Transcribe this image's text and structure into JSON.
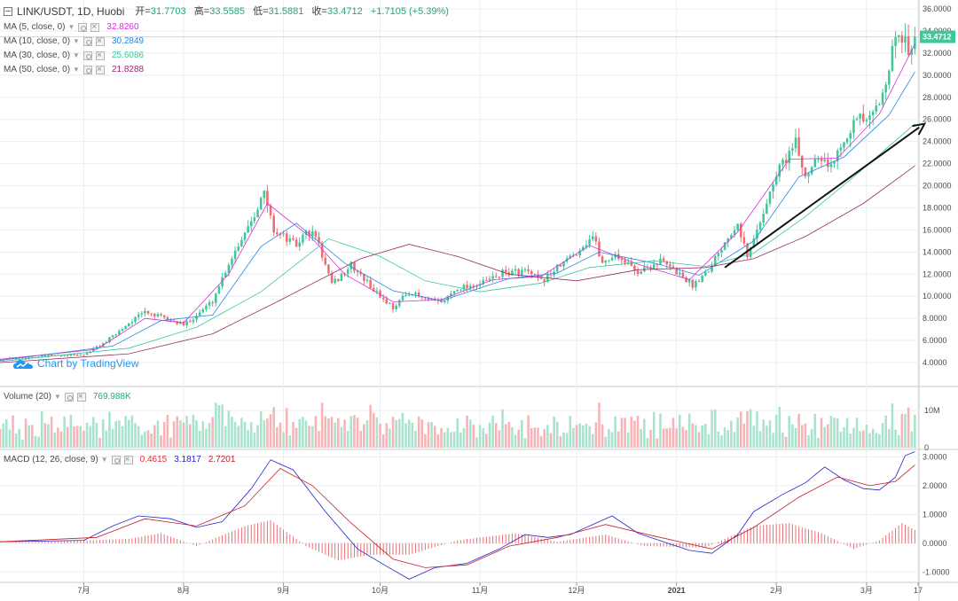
{
  "header": {
    "symbol": "LINK/USDT, 1D, Huobi",
    "open_label": "开=",
    "open": "31.7703",
    "high_label": "高=",
    "high": "33.5585",
    "low_label": "低=",
    "low": "31.5881",
    "close_label": "收=",
    "close": "33.4712",
    "change": "+1.7105 (+5.39%)"
  },
  "indicators": {
    "ma5": {
      "label": "MA (5, close, 0)",
      "value": "32.8260",
      "color": "#d62fd6"
    },
    "ma10": {
      "label": "MA (10, close, 0)",
      "value": "30.2849",
      "color": "#2c87e0"
    },
    "ma30": {
      "label": "MA (30, close, 0)",
      "value": "25.6086",
      "color": "#3fc79a"
    },
    "ma50": {
      "label": "MA (50, close, 0)",
      "value": "21.8288",
      "color": "#9c2a6a"
    },
    "volume": {
      "label": "Volume (20)",
      "value": "769.988K",
      "color": "#20a87a"
    },
    "macd": {
      "label": "MACD (12, 26, close, 9)",
      "hist": "0.4615",
      "macd": "3.1817",
      "signal": "2.7201",
      "hist_color": "#e0313a",
      "macd_color": "#2727c9",
      "signal_color": "#c4202a"
    }
  },
  "watermark": "Chart by TradingView",
  "colors": {
    "up": "#3fc79a",
    "down": "#ee6b72",
    "vol_up": "#a8e3cd",
    "vol_down": "#f6b4b6",
    "grid": "#e9eef2",
    "last_price_bg": "#3fc79a"
  },
  "chart_data": [
    {
      "type": "candlestick",
      "title": "LINK/USDT, 1D, Huobi",
      "x_range": [
        "2020-06-05",
        "2021-03-17"
      ],
      "x_tick_labels": [
        "7月",
        "8月",
        "9月",
        "10月",
        "11月",
        "12月",
        "2021",
        "2月",
        "3月",
        "17"
      ],
      "x_tick_dates": [
        "2020-07-01",
        "2020-08-01",
        "2020-09-01",
        "2020-10-01",
        "2020-11-01",
        "2020-12-01",
        "2021-01-01",
        "2021-02-01",
        "2021-03-01",
        "2021-03-17"
      ],
      "y_range": [
        2.0,
        36.0
      ],
      "y_ticks": [
        "4.0000",
        "6.0000",
        "8.0000",
        "10.0000",
        "12.0000",
        "14.0000",
        "16.0000",
        "18.0000",
        "20.0000",
        "22.0000",
        "24.0000",
        "26.0000",
        "28.0000",
        "30.0000",
        "32.0000",
        "34.0000",
        "36.0000"
      ],
      "last_price": "33.4712",
      "close_path": [
        [
          "2020-06-05",
          4.3
        ],
        [
          "2020-06-20",
          4.6
        ],
        [
          "2020-07-01",
          4.7
        ],
        [
          "2020-07-08",
          5.9
        ],
        [
          "2020-07-15",
          7.6
        ],
        [
          "2020-07-20",
          8.6
        ],
        [
          "2020-07-27",
          7.9
        ],
        [
          "2020-08-01",
          7.4
        ],
        [
          "2020-08-05",
          8.3
        ],
        [
          "2020-08-10",
          9.6
        ],
        [
          "2020-08-15",
          13.0
        ],
        [
          "2020-08-22",
          17.0
        ],
        [
          "2020-08-26",
          19.3
        ],
        [
          "2020-08-29",
          16.0
        ],
        [
          "2020-09-05",
          14.6
        ],
        [
          "2020-09-08",
          15.8
        ],
        [
          "2020-09-11",
          15.5
        ],
        [
          "2020-09-16",
          11.0
        ],
        [
          "2020-09-22",
          12.8
        ],
        [
          "2020-10-01",
          10.0
        ],
        [
          "2020-10-05",
          9.0
        ],
        [
          "2020-10-10",
          10.4
        ],
        [
          "2020-10-15",
          9.7
        ],
        [
          "2020-10-20",
          9.4
        ],
        [
          "2020-10-25",
          10.8
        ],
        [
          "2020-11-01",
          11.1
        ],
        [
          "2020-11-08",
          12.1
        ],
        [
          "2020-11-15",
          12.3
        ],
        [
          "2020-11-20",
          11.3
        ],
        [
          "2020-11-26",
          12.8
        ],
        [
          "2020-12-01",
          14.0
        ],
        [
          "2020-12-06",
          15.5
        ],
        [
          "2020-12-09",
          13.0
        ],
        [
          "2020-12-13",
          13.8
        ],
        [
          "2020-12-20",
          12.2
        ],
        [
          "2020-12-27",
          13.2
        ],
        [
          "2021-01-02",
          12.0
        ],
        [
          "2021-01-06",
          11.0
        ],
        [
          "2021-01-11",
          12.5
        ],
        [
          "2021-01-16",
          15.0
        ],
        [
          "2021-01-20",
          16.8
        ],
        [
          "2021-01-23",
          13.5
        ],
        [
          "2021-01-28",
          17.7
        ],
        [
          "2021-02-02",
          21.7
        ],
        [
          "2021-02-07",
          23.8
        ],
        [
          "2021-02-10",
          20.8
        ],
        [
          "2021-02-14",
          23.0
        ],
        [
          "2021-02-18",
          21.6
        ],
        [
          "2021-02-22",
          24.5
        ],
        [
          "2021-02-26",
          26.0
        ],
        [
          "2021-03-02",
          25.8
        ],
        [
          "2021-03-05",
          27.5
        ],
        [
          "2021-03-08",
          31.0
        ],
        [
          "2021-03-11",
          33.8
        ],
        [
          "2021-03-14",
          32.5
        ],
        [
          "2021-03-16",
          33.47
        ]
      ],
      "moving_averages": [
        {
          "name": "MA (5, close, 0)",
          "color": "#d62fd6",
          "values": [
            [
              "2020-06-05",
              4.3
            ],
            [
              "2020-07-05",
              5.2
            ],
            [
              "2020-07-20",
              8.0
            ],
            [
              "2020-08-01",
              7.6
            ],
            [
              "2020-08-15",
              12.0
            ],
            [
              "2020-08-27",
              18.4
            ],
            [
              "2020-09-10",
              15.2
            ],
            [
              "2020-09-20",
              12.0
            ],
            [
              "2020-10-05",
              9.5
            ],
            [
              "2020-10-20",
              9.7
            ],
            [
              "2020-11-05",
              11.5
            ],
            [
              "2020-11-20",
              11.8
            ],
            [
              "2020-12-05",
              14.6
            ],
            [
              "2020-12-20",
              12.9
            ],
            [
              "2021-01-05",
              11.5
            ],
            [
              "2021-01-20",
              15.8
            ],
            [
              "2021-02-05",
              22.4
            ],
            [
              "2021-02-20",
              22.5
            ],
            [
              "2021-03-05",
              26.5
            ],
            [
              "2021-03-16",
              32.8
            ]
          ]
        },
        {
          "name": "MA (10, close, 0)",
          "color": "#2c87e0",
          "values": [
            [
              "2020-06-05",
              4.2
            ],
            [
              "2020-07-10",
              5.5
            ],
            [
              "2020-07-25",
              7.8
            ],
            [
              "2020-08-10",
              8.3
            ],
            [
              "2020-08-25",
              14.5
            ],
            [
              "2020-09-05",
              16.6
            ],
            [
              "2020-09-20",
              13.0
            ],
            [
              "2020-10-05",
              10.5
            ],
            [
              "2020-10-20",
              9.6
            ],
            [
              "2020-11-10",
              11.6
            ],
            [
              "2020-11-25",
              12.1
            ],
            [
              "2020-12-08",
              14.0
            ],
            [
              "2020-12-25",
              13.0
            ],
            [
              "2021-01-08",
              11.9
            ],
            [
              "2021-01-25",
              15.0
            ],
            [
              "2021-02-08",
              20.8
            ],
            [
              "2021-02-22",
              22.6
            ],
            [
              "2021-03-08",
              26.4
            ],
            [
              "2021-03-16",
              30.3
            ]
          ]
        },
        {
          "name": "MA (30, close, 0)",
          "color": "#3fc79a",
          "values": [
            [
              "2020-06-05",
              4.1
            ],
            [
              "2020-07-15",
              5.3
            ],
            [
              "2020-08-05",
              7.2
            ],
            [
              "2020-08-25",
              10.4
            ],
            [
              "2020-09-15",
              15.2
            ],
            [
              "2020-10-01",
              13.6
            ],
            [
              "2020-10-15",
              11.4
            ],
            [
              "2020-11-01",
              10.4
            ],
            [
              "2020-11-20",
              11.2
            ],
            [
              "2020-12-05",
              12.6
            ],
            [
              "2020-12-25",
              13.2
            ],
            [
              "2021-01-10",
              12.7
            ],
            [
              "2021-01-25",
              13.9
            ],
            [
              "2021-02-10",
              17.2
            ],
            [
              "2021-02-25",
              20.8
            ],
            [
              "2021-03-16",
              25.6
            ]
          ]
        },
        {
          "name": "MA (50, close, 0)",
          "color": "#9c2a6a",
          "values": [
            [
              "2020-06-05",
              4.0
            ],
            [
              "2020-07-15",
              4.8
            ],
            [
              "2020-08-10",
              6.6
            ],
            [
              "2020-08-30",
              9.5
            ],
            [
              "2020-09-25",
              13.4
            ],
            [
              "2020-10-10",
              14.7
            ],
            [
              "2020-10-25",
              13.6
            ],
            [
              "2020-11-10",
              12.0
            ],
            [
              "2020-12-01",
              11.4
            ],
            [
              "2020-12-20",
              12.4
            ],
            [
              "2021-01-10",
              12.6
            ],
            [
              "2021-01-25",
              13.4
            ],
            [
              "2021-02-10",
              15.4
            ],
            [
              "2021-02-28",
              18.4
            ],
            [
              "2021-03-16",
              21.8
            ]
          ]
        }
      ]
    },
    {
      "type": "bar",
      "title": "Volume (20)",
      "y_range": [
        0,
        16000000
      ],
      "y_ticks": [
        "0",
        "10M"
      ],
      "last_value": "769.988K"
    },
    {
      "type": "line",
      "title": "MACD (12, 26, close, 9)",
      "y_range": [
        -1.3,
        3.2
      ],
      "y_ticks": [
        "-1.0000",
        "0.0000",
        "1.0000",
        "2.0000",
        "3.0000"
      ],
      "series": [
        {
          "name": "MACD",
          "color": "#2727c9",
          "values": [
            [
              "2020-06-05",
              0.05
            ],
            [
              "2020-07-01",
              0.1
            ],
            [
              "2020-07-10",
              0.6
            ],
            [
              "2020-07-18",
              0.95
            ],
            [
              "2020-07-28",
              0.85
            ],
            [
              "2020-08-05",
              0.55
            ],
            [
              "2020-08-13",
              0.75
            ],
            [
              "2020-08-22",
              1.9
            ],
            [
              "2020-08-28",
              2.9
            ],
            [
              "2020-09-04",
              2.55
            ],
            [
              "2020-09-14",
              1.1
            ],
            [
              "2020-09-24",
              -0.2
            ],
            [
              "2020-10-03",
              -0.8
            ],
            [
              "2020-10-10",
              -1.25
            ],
            [
              "2020-10-18",
              -0.85
            ],
            [
              "2020-10-28",
              -0.7
            ],
            [
              "2020-11-07",
              -0.2
            ],
            [
              "2020-11-15",
              0.3
            ],
            [
              "2020-11-22",
              0.2
            ],
            [
              "2020-11-29",
              0.3
            ],
            [
              "2020-12-08",
              0.75
            ],
            [
              "2020-12-12",
              0.95
            ],
            [
              "2020-12-20",
              0.35
            ],
            [
              "2020-12-28",
              0.05
            ],
            [
              "2021-01-05",
              -0.25
            ],
            [
              "2021-01-12",
              -0.35
            ],
            [
              "2021-01-20",
              0.3
            ],
            [
              "2021-01-25",
              1.1
            ],
            [
              "2021-02-03",
              1.7
            ],
            [
              "2021-02-10",
              2.1
            ],
            [
              "2021-02-16",
              2.65
            ],
            [
              "2021-02-22",
              2.2
            ],
            [
              "2021-02-28",
              1.9
            ],
            [
              "2021-03-05",
              1.85
            ],
            [
              "2021-03-10",
              2.3
            ],
            [
              "2021-03-13",
              3.05
            ],
            [
              "2021-03-16",
              3.18
            ]
          ]
        },
        {
          "name": "Signal",
          "color": "#c4202a",
          "values": [
            [
              "2020-06-05",
              0.05
            ],
            [
              "2020-07-05",
              0.2
            ],
            [
              "2020-07-20",
              0.85
            ],
            [
              "2020-08-05",
              0.6
            ],
            [
              "2020-08-20",
              1.3
            ],
            [
              "2020-08-31",
              2.6
            ],
            [
              "2020-09-10",
              2.0
            ],
            [
              "2020-09-22",
              0.7
            ],
            [
              "2020-10-05",
              -0.55
            ],
            [
              "2020-10-15",
              -0.85
            ],
            [
              "2020-10-28",
              -0.75
            ],
            [
              "2020-11-10",
              -0.1
            ],
            [
              "2020-11-25",
              0.2
            ],
            [
              "2020-12-10",
              0.65
            ],
            [
              "2020-12-25",
              0.25
            ],
            [
              "2021-01-12",
              -0.2
            ],
            [
              "2021-01-25",
              0.55
            ],
            [
              "2021-02-08",
              1.6
            ],
            [
              "2021-02-20",
              2.3
            ],
            [
              "2021-03-02",
              2.0
            ],
            [
              "2021-03-10",
              2.15
            ],
            [
              "2021-03-16",
              2.72
            ]
          ]
        }
      ],
      "histogram_values": [
        [
          "2020-06-05",
          0.0
        ],
        [
          "2020-07-15",
          0.15
        ],
        [
          "2020-07-25",
          0.35
        ],
        [
          "2020-08-05",
          -0.1
        ],
        [
          "2020-08-20",
          0.6
        ],
        [
          "2020-08-28",
          0.8
        ],
        [
          "2020-09-08",
          -0.1
        ],
        [
          "2020-09-18",
          -0.6
        ],
        [
          "2020-09-28",
          -0.4
        ],
        [
          "2020-10-10",
          -0.4
        ],
        [
          "2020-10-25",
          0.1
        ],
        [
          "2020-11-12",
          0.35
        ],
        [
          "2020-11-25",
          0.05
        ],
        [
          "2020-12-10",
          0.3
        ],
        [
          "2020-12-22",
          -0.1
        ],
        [
          "2021-01-10",
          -0.15
        ],
        [
          "2021-01-25",
          0.6
        ],
        [
          "2021-02-05",
          0.7
        ],
        [
          "2021-02-15",
          0.35
        ],
        [
          "2021-02-25",
          -0.2
        ],
        [
          "2021-03-05",
          0.1
        ],
        [
          "2021-03-12",
          0.7
        ],
        [
          "2021-03-16",
          0.46
        ]
      ]
    }
  ]
}
